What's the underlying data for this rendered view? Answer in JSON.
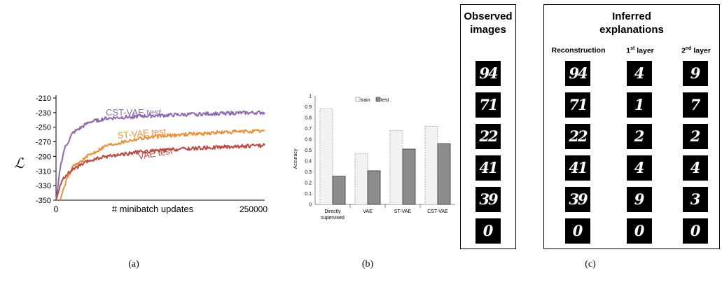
{
  "chart_data": [
    {
      "type": "line",
      "title": "",
      "xlabel": "# minibatch updates",
      "ylabel": "ℒ",
      "xlim": [
        0,
        250000
      ],
      "ylim": [
        -350,
        -210
      ],
      "x_ticks": [
        "0",
        "250000"
      ],
      "y_ticks": [
        "-210",
        "-230",
        "-250",
        "-270",
        "-290",
        "-310",
        "-330",
        "-350"
      ],
      "legend": "inline labels",
      "series": [
        {
          "name": "CST-VAE test",
          "color": "#8e6aae",
          "x": [
            0,
            2500,
            5000,
            10000,
            20000,
            40000,
            60000,
            100000,
            150000,
            200000,
            250000
          ],
          "y": [
            -350,
            -330,
            -305,
            -280,
            -258,
            -243,
            -238,
            -235,
            -233,
            -231,
            -230
          ]
        },
        {
          "name": "ST-VAE test",
          "color": "#e8913d",
          "x": [
            5000,
            10000,
            20000,
            40000,
            60000,
            100000,
            150000,
            200000,
            250000
          ],
          "y": [
            -350,
            -330,
            -305,
            -288,
            -275,
            -265,
            -260,
            -257,
            -255
          ]
        },
        {
          "name": "VAE test",
          "color": "#b94b45",
          "x": [
            0,
            5000,
            10000,
            20000,
            40000,
            60000,
            100000,
            150000,
            200000,
            250000
          ],
          "y": [
            -350,
            -330,
            -318,
            -308,
            -296,
            -290,
            -284,
            -280,
            -277,
            -275
          ]
        }
      ]
    },
    {
      "type": "bar",
      "title": "",
      "xlabel": "",
      "ylabel": "Accuracy",
      "ylim": [
        0,
        1
      ],
      "y_ticks": [
        "0",
        "0.1",
        "0.2",
        "0.3",
        "0.4",
        "0.5",
        "0.6",
        "0.7",
        "0.8",
        "0.9",
        "1"
      ],
      "categories": [
        "Directly supervised",
        "VAE",
        "ST-VAE",
        "CST-VAE"
      ],
      "legend": "top",
      "series": [
        {
          "name": "train",
          "color": "#f2f2f2",
          "values": [
            0.88,
            0.47,
            0.68,
            0.72
          ]
        },
        {
          "name": "test",
          "color": "#8c8c8c",
          "values": [
            0.26,
            0.31,
            0.51,
            0.56
          ]
        }
      ]
    }
  ],
  "captions": [
    "(a)",
    "(b)",
    "(c)"
  ],
  "panel_c": {
    "observed_title_1": "Observed",
    "observed_title_2": "images",
    "inferred_title_1": "Inferred",
    "inferred_title_2": "explanations",
    "col_reconstruction": "Reconstruction",
    "col_first_base": "1",
    "col_first_sup": "st",
    "col_first_rest": " layer",
    "col_second_base": "2",
    "col_second_sup": "nd",
    "col_second_rest": " layer",
    "observed_digits": [
      "94",
      "71",
      "22",
      "41",
      "39",
      "0"
    ],
    "reconstruction_digits": [
      "94",
      "71",
      "22",
      "41",
      "39",
      "0"
    ],
    "first_layer_digits": [
      "4",
      "1",
      "2",
      "4",
      "9",
      "0"
    ],
    "second_layer_digits": [
      "9",
      "7",
      "2",
      "4",
      "3",
      "0"
    ]
  }
}
